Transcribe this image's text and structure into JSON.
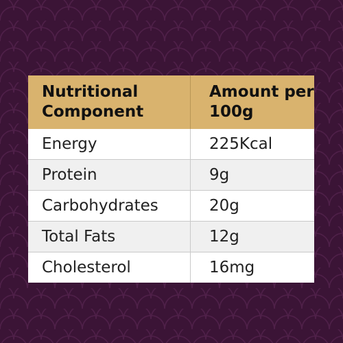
{
  "colors": {
    "background": "#3b1436",
    "scale_pattern": "#4a1d45",
    "header_fill": "#d9b36e",
    "row_odd": "#ffffff",
    "row_even": "#f0f0f0"
  },
  "table": {
    "headers": {
      "component_line1": "Nutritional",
      "component_line2": "Component",
      "amount_line1": "Amount per",
      "amount_line2": "100g"
    },
    "rows": [
      {
        "component": "Energy",
        "amount": "225Kcal"
      },
      {
        "component": "Protein",
        "amount": "9g"
      },
      {
        "component": "Carbohydrates",
        "amount": "20g"
      },
      {
        "component": "Total Fats",
        "amount": "12g"
      },
      {
        "component": "Cholesterol",
        "amount": "16mg"
      }
    ]
  }
}
